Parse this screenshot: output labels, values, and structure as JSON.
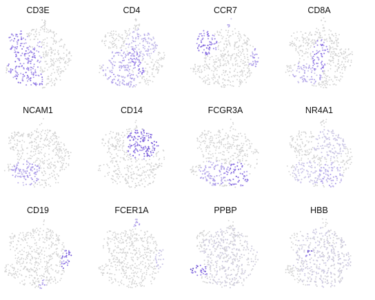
{
  "colors": {
    "background_cells": "#d4d4d4",
    "low": "#c9c2ec",
    "mid": "#8d72e6",
    "high": "#4b2fb8",
    "max": "#2a1670"
  },
  "chart_data": {
    "type": "scatter",
    "description_scale": "expression level 0-1 mapped grey to purple",
    "grid": false,
    "legend": "none",
    "panels": [
      {
        "gene": "CD3E",
        "regions": [
          {
            "cluster": "upper-left T cell island",
            "level": 0.7
          },
          {
            "cluster": "left lower mass",
            "level": 0.75
          },
          {
            "cluster": "center-left band",
            "level": 0.6
          }
        ]
      },
      {
        "gene": "CD4",
        "regions": [
          {
            "cluster": "upper-right myeloid mass",
            "level": 0.45
          },
          {
            "cluster": "left lower mass",
            "level": 0.55
          },
          {
            "cluster": "center streak",
            "level": 0.7
          }
        ]
      },
      {
        "gene": "CCR7",
        "regions": [
          {
            "cluster": "upper-left T cell island",
            "level": 0.8
          },
          {
            "cluster": "right B cell island",
            "level": 0.65
          },
          {
            "cluster": "top tip",
            "level": 0.5
          }
        ]
      },
      {
        "gene": "CD8A",
        "regions": [
          {
            "cluster": "center band",
            "level": 0.75
          },
          {
            "cluster": "lower-left mass",
            "level": 0.5
          }
        ]
      },
      {
        "gene": "NCAM1",
        "regions": [
          {
            "cluster": "lower-left mass",
            "level": 0.6
          }
        ]
      },
      {
        "gene": "CD14",
        "regions": [
          {
            "cluster": "upper-right myeloid mass",
            "level": 0.85
          }
        ]
      },
      {
        "gene": "FCGR3A",
        "regions": [
          {
            "cluster": "lower-left mass",
            "level": 0.55
          },
          {
            "cluster": "lower-right mass",
            "level": 0.8
          }
        ]
      },
      {
        "gene": "NR4A1",
        "regions": [
          {
            "cluster": "lower-left mass",
            "level": 0.35
          },
          {
            "cluster": "lower-right mass",
            "level": 0.5
          },
          {
            "cluster": "upper-right myeloid mass",
            "level": 0.3
          }
        ]
      },
      {
        "gene": "CD19",
        "regions": [
          {
            "cluster": "right B cell island",
            "level": 0.8
          },
          {
            "cluster": "bottom tip",
            "level": 0.6
          }
        ]
      },
      {
        "gene": "FCER1A",
        "regions": [
          {
            "cluster": "top tip",
            "level": 0.6
          },
          {
            "cluster": "right B cell island",
            "level": 0.35
          }
        ]
      },
      {
        "gene": "PPBP",
        "regions": [
          {
            "cluster": "left arc island",
            "level": 0.95
          },
          {
            "cluster": "everywhere",
            "level": 0.2
          }
        ]
      },
      {
        "gene": "HBB",
        "regions": [
          {
            "cluster": "top-left small cluster",
            "level": 0.95
          },
          {
            "cluster": "everywhere",
            "level": 0.25
          }
        ]
      }
    ]
  }
}
